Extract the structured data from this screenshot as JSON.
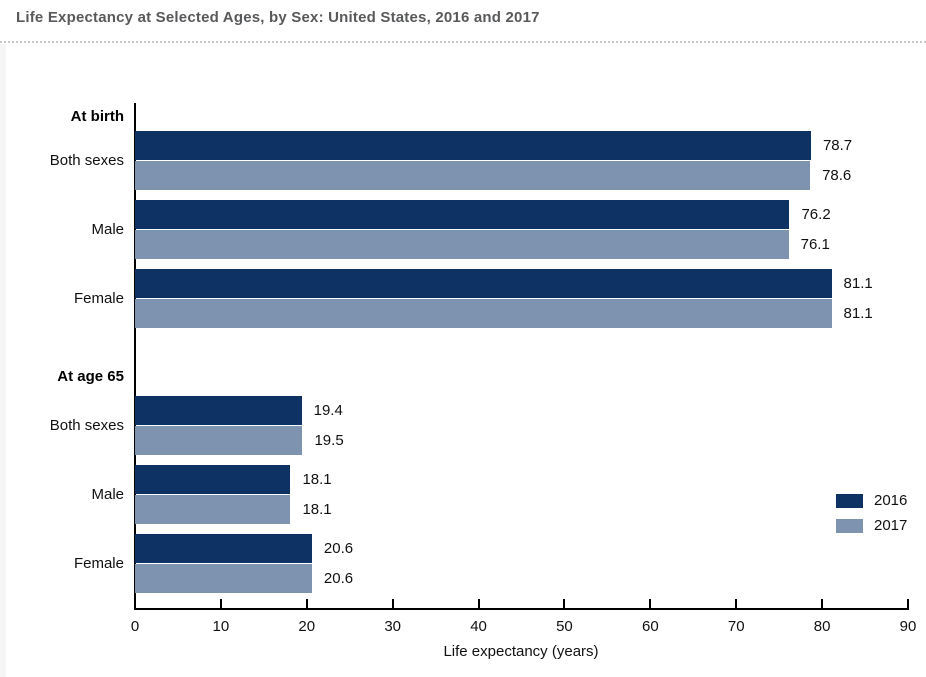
{
  "header": {
    "title": "Life Expectancy at Selected Ages, by Sex: United States, 2016 and 2017"
  },
  "chart_data": {
    "type": "bar",
    "orientation": "horizontal",
    "title": "Life Expectancy at Selected Ages, by Sex: United States, 2016 and 2017",
    "xlabel": "Life expectancy (years)",
    "xlim": [
      0,
      90
    ],
    "xticks": [
      0,
      10,
      20,
      30,
      40,
      50,
      60,
      70,
      80,
      90
    ],
    "grid": false,
    "legend_position": "right-lower",
    "legend": [
      "2016",
      "2017"
    ],
    "colors": {
      "2016": "#0d3263",
      "2017": "#7e93b0"
    },
    "sections": [
      {
        "label": "At birth",
        "categories": [
          "Both sexes",
          "Male",
          "Female"
        ],
        "series": [
          {
            "name": "2016",
            "values": [
              78.7,
              76.2,
              81.1
            ]
          },
          {
            "name": "2017",
            "values": [
              78.6,
              76.1,
              81.1
            ]
          }
        ]
      },
      {
        "label": "At age 65",
        "categories": [
          "Both sexes",
          "Male",
          "Female"
        ],
        "series": [
          {
            "name": "2016",
            "values": [
              19.4,
              18.1,
              20.6
            ]
          },
          {
            "name": "2017",
            "values": [
              19.5,
              18.1,
              20.6
            ]
          }
        ]
      }
    ]
  }
}
